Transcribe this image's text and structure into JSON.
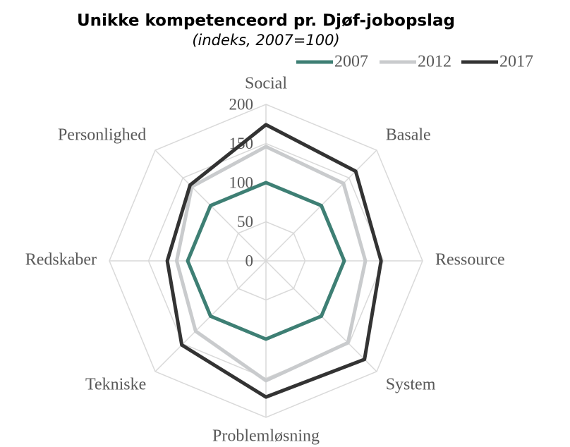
{
  "chart_data": {
    "type": "radar",
    "title": "Unikke kompetenceord pr. Djøf-jobopslag",
    "subtitle": "(indeks, 2007=100)",
    "categories": [
      "Social",
      "Basale",
      "Ressource",
      "System",
      "Problemløsning",
      "Tekniske",
      "Redskaber",
      "Personlighed"
    ],
    "series": [
      {
        "name": "2007",
        "color": "#3e7f74",
        "values": [
          100,
          100,
          100,
          100,
          100,
          100,
          100,
          100
        ]
      },
      {
        "name": "2012",
        "color": "#c9cbcd",
        "values": [
          146,
          140,
          127,
          148,
          153,
          127,
          114,
          134
        ]
      },
      {
        "name": "2017",
        "color": "#333333",
        "values": [
          174,
          162,
          147,
          178,
          174,
          152,
          126,
          137
        ]
      }
    ],
    "ylim": [
      0,
      200
    ],
    "yticks": [
      0,
      50,
      100,
      150,
      200
    ],
    "grid": true,
    "legend": "top-right"
  }
}
